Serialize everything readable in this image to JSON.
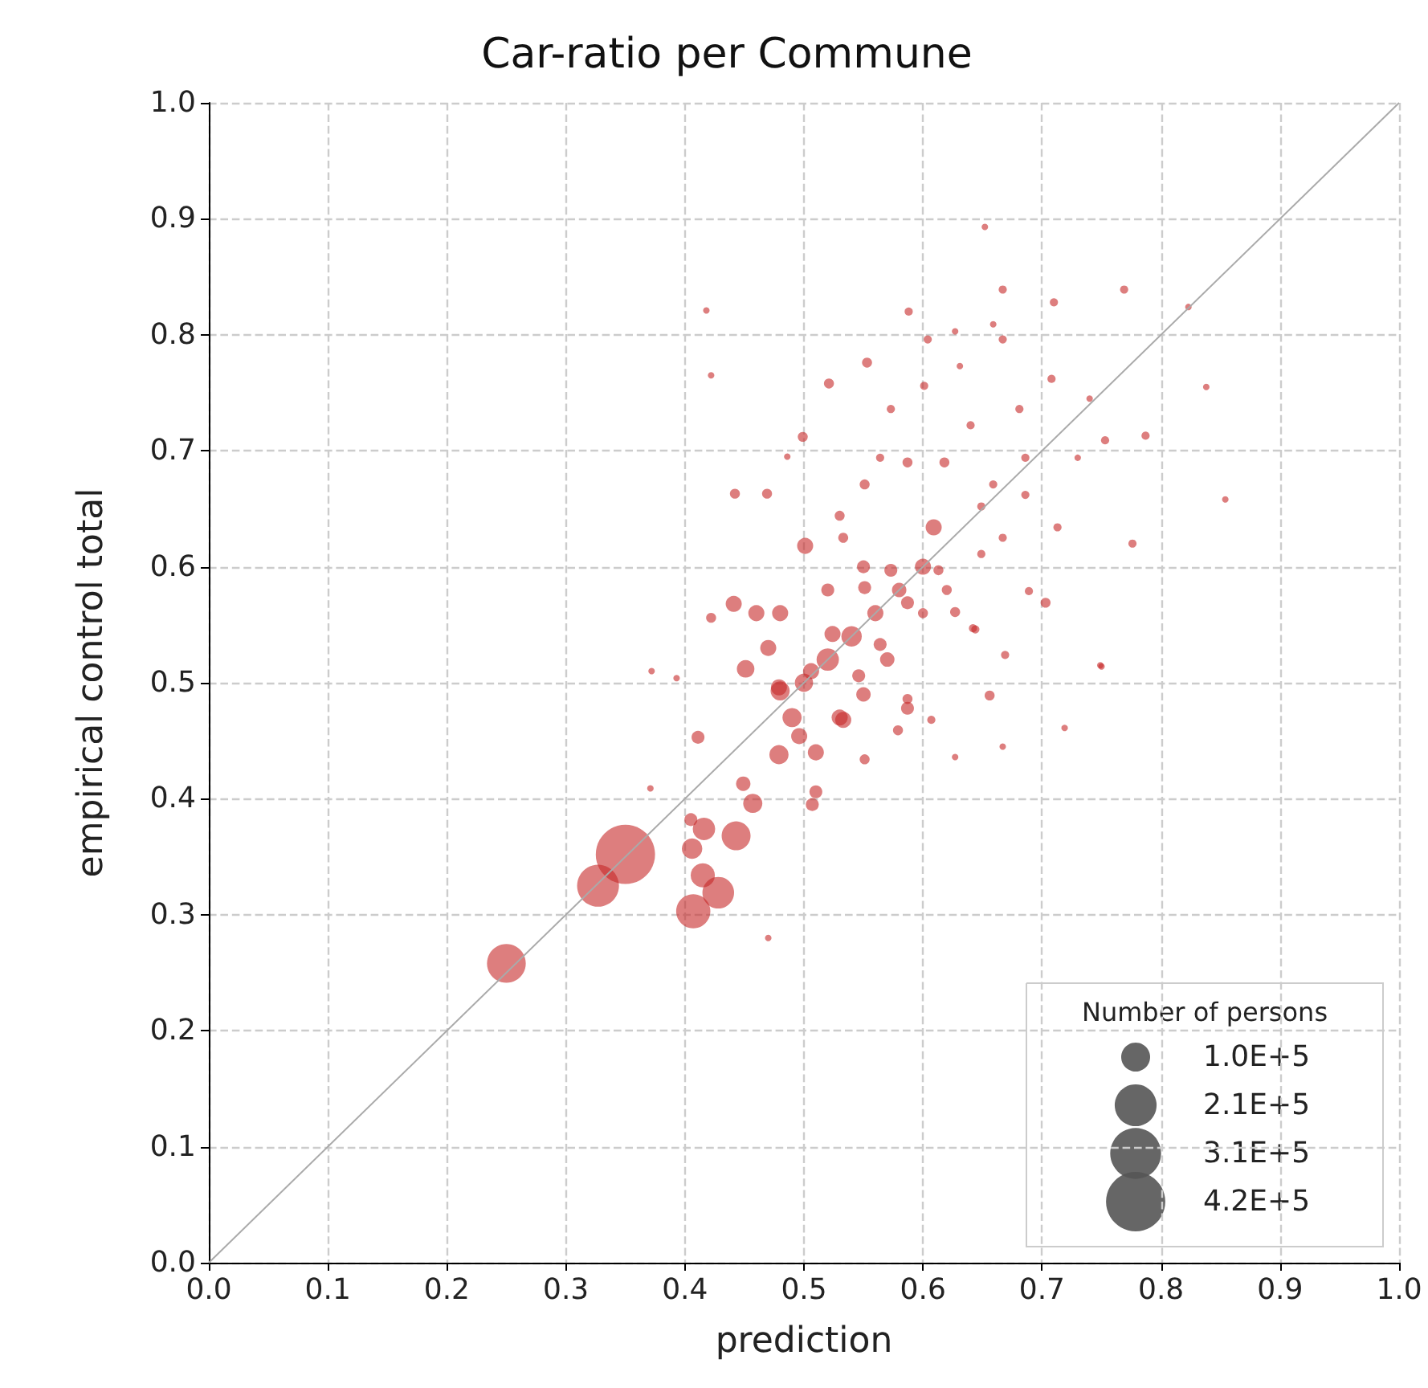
{
  "chart_data": {
    "type": "bubble",
    "title": "Car-ratio per Commune",
    "xlabel": "prediction",
    "ylabel": "empirical control total",
    "legend_title": "Number of persons",
    "xlim": [
      0,
      1
    ],
    "ylim": [
      0,
      1
    ],
    "xticks": [
      {
        "value": 0,
        "label": "0.0"
      },
      {
        "value": 0.1,
        "label": "0.1"
      },
      {
        "value": 0.2,
        "label": "0.2"
      },
      {
        "value": 0.3,
        "label": "0.3"
      },
      {
        "value": 0.4,
        "label": "0.4"
      },
      {
        "value": 0.5,
        "label": "0.5"
      },
      {
        "value": 0.6,
        "label": "0.6"
      },
      {
        "value": 0.7,
        "label": "0.7"
      },
      {
        "value": 0.8,
        "label": "0.8"
      },
      {
        "value": 0.9,
        "label": "0.9"
      },
      {
        "value": 1,
        "label": "1.0"
      }
    ],
    "yticks": [
      {
        "value": 0,
        "label": "0.0"
      },
      {
        "value": 0.1,
        "label": "0.1"
      },
      {
        "value": 0.2,
        "label": "0.2"
      },
      {
        "value": 0.3,
        "label": "0.3"
      },
      {
        "value": 0.4,
        "label": "0.4"
      },
      {
        "value": 0.5,
        "label": "0.5"
      },
      {
        "value": 0.6,
        "label": "0.6"
      },
      {
        "value": 0.7,
        "label": "0.7"
      },
      {
        "value": 0.8,
        "label": "0.8"
      },
      {
        "value": 0.9,
        "label": "0.9"
      },
      {
        "value": 1,
        "label": "1.0"
      }
    ],
    "grid": true,
    "size_legend": [
      {
        "value": 100000,
        "label": "1.0E+5"
      },
      {
        "value": 210000,
        "label": "2.1E+5"
      },
      {
        "value": 310000,
        "label": "3.1E+5"
      },
      {
        "value": 420000,
        "label": "4.2E+5"
      }
    ],
    "series": [
      {
        "type": "line",
        "color": "#aaaaaa",
        "x": [
          0,
          1
        ],
        "values": [
          0,
          1
        ]
      },
      {
        "color": "#c62828",
        "x": [
          0.35,
          0.327,
          0.25,
          0.407,
          0.428,
          0.415,
          0.416,
          0.443,
          0.406,
          0.47,
          0.371,
          0.405,
          0.457,
          0.451,
          0.393,
          0.372,
          0.411,
          0.449,
          0.479,
          0.48,
          0.769,
          0.71,
          0.588,
          0.823,
          0.652,
          0.553,
          0.521,
          0.499,
          0.787,
          0.753,
          0.486,
          0.469,
          0.442,
          0.422,
          0.418,
          0.53,
          0.501,
          0.533,
          0.609,
          0.776,
          0.703,
          0.689,
          0.441,
          0.422,
          0.644,
          0.854,
          0.838,
          0.749,
          0.601,
          0.64,
          0.681,
          0.573,
          0.618,
          0.659,
          0.587,
          0.551,
          0.564,
          0.686,
          0.73,
          0.686,
          0.573,
          0.613,
          0.649,
          0.551,
          0.524,
          0.587,
          0.627,
          0.564,
          0.506,
          0.546,
          0.479,
          0.587,
          0.533,
          0.496,
          0.649,
          0.667,
          0.713,
          0.604,
          0.631,
          0.667,
          0.627,
          0.667,
          0.659,
          0.708,
          0.74,
          0.667,
          0.656,
          0.669,
          0.642,
          0.627,
          0.719,
          0.75,
          0.587,
          0.551,
          0.579,
          0.607,
          0.51,
          0.507,
          0.52,
          0.54,
          0.5,
          0.56,
          0.53,
          0.57,
          0.49,
          0.51,
          0.55,
          0.6,
          0.58,
          0.47,
          0.46,
          0.48,
          0.52,
          0.55,
          0.6,
          0.62
        ],
        "values": [
          0.352,
          0.325,
          0.258,
          0.303,
          0.319,
          0.334,
          0.374,
          0.368,
          0.357,
          0.28,
          0.409,
          0.382,
          0.396,
          0.512,
          0.504,
          0.51,
          0.453,
          0.413,
          0.438,
          0.493,
          0.839,
          0.828,
          0.82,
          0.824,
          0.893,
          0.776,
          0.758,
          0.712,
          0.713,
          0.709,
          0.695,
          0.663,
          0.663,
          0.765,
          0.821,
          0.644,
          0.618,
          0.625,
          0.634,
          0.62,
          0.569,
          0.579,
          0.568,
          0.556,
          0.546,
          0.658,
          0.755,
          0.515,
          0.756,
          0.722,
          0.736,
          0.736,
          0.69,
          0.671,
          0.69,
          0.671,
          0.694,
          0.694,
          0.694,
          0.662,
          0.597,
          0.597,
          0.611,
          0.582,
          0.542,
          0.569,
          0.561,
          0.533,
          0.51,
          0.506,
          0.496,
          0.486,
          0.468,
          0.454,
          0.652,
          0.625,
          0.634,
          0.796,
          0.773,
          0.796,
          0.803,
          0.839,
          0.809,
          0.762,
          0.745,
          0.445,
          0.489,
          0.524,
          0.547,
          0.436,
          0.461,
          0.514,
          0.478,
          0.434,
          0.459,
          0.468,
          0.406,
          0.395,
          0.52,
          0.54,
          0.5,
          0.56,
          0.47,
          0.52,
          0.47,
          0.44,
          0.49,
          0.6,
          0.58,
          0.53,
          0.56,
          0.56,
          0.58,
          0.6,
          0.56,
          0.58
        ],
        "sizes": [
          420000,
          210000,
          180000,
          140000,
          120000,
          70000,
          60000,
          100000,
          50000,
          5000,
          5000,
          20000,
          44000,
          37000,
          5000,
          5000,
          20000,
          25000,
          44000,
          44000,
          8000,
          8000,
          8000,
          5000,
          5000,
          12000,
          12000,
          12000,
          8000,
          8000,
          5000,
          12000,
          12000,
          5000,
          5000,
          12000,
          31000,
          12000,
          31000,
          8000,
          12000,
          8000,
          31000,
          12000,
          8000,
          5000,
          5000,
          5000,
          8000,
          8000,
          8000,
          8000,
          12000,
          8000,
          12000,
          12000,
          8000,
          8000,
          5000,
          8000,
          20000,
          12000,
          8000,
          20000,
          31000,
          20000,
          12000,
          20000,
          31000,
          20000,
          31000,
          12000,
          31000,
          31000,
          8000,
          8000,
          8000,
          8000,
          5000,
          8000,
          5000,
          8000,
          5000,
          8000,
          5000,
          5000,
          12000,
          8000,
          8000,
          5000,
          5000,
          5000,
          20000,
          12000,
          12000,
          8000,
          20000,
          20000,
          60000,
          50000,
          40000,
          31000,
          31000,
          25000,
          44000,
          31000,
          25000,
          31000,
          25000,
          31000,
          31000,
          31000,
          20000,
          20000,
          12000,
          12000
        ]
      }
    ]
  }
}
